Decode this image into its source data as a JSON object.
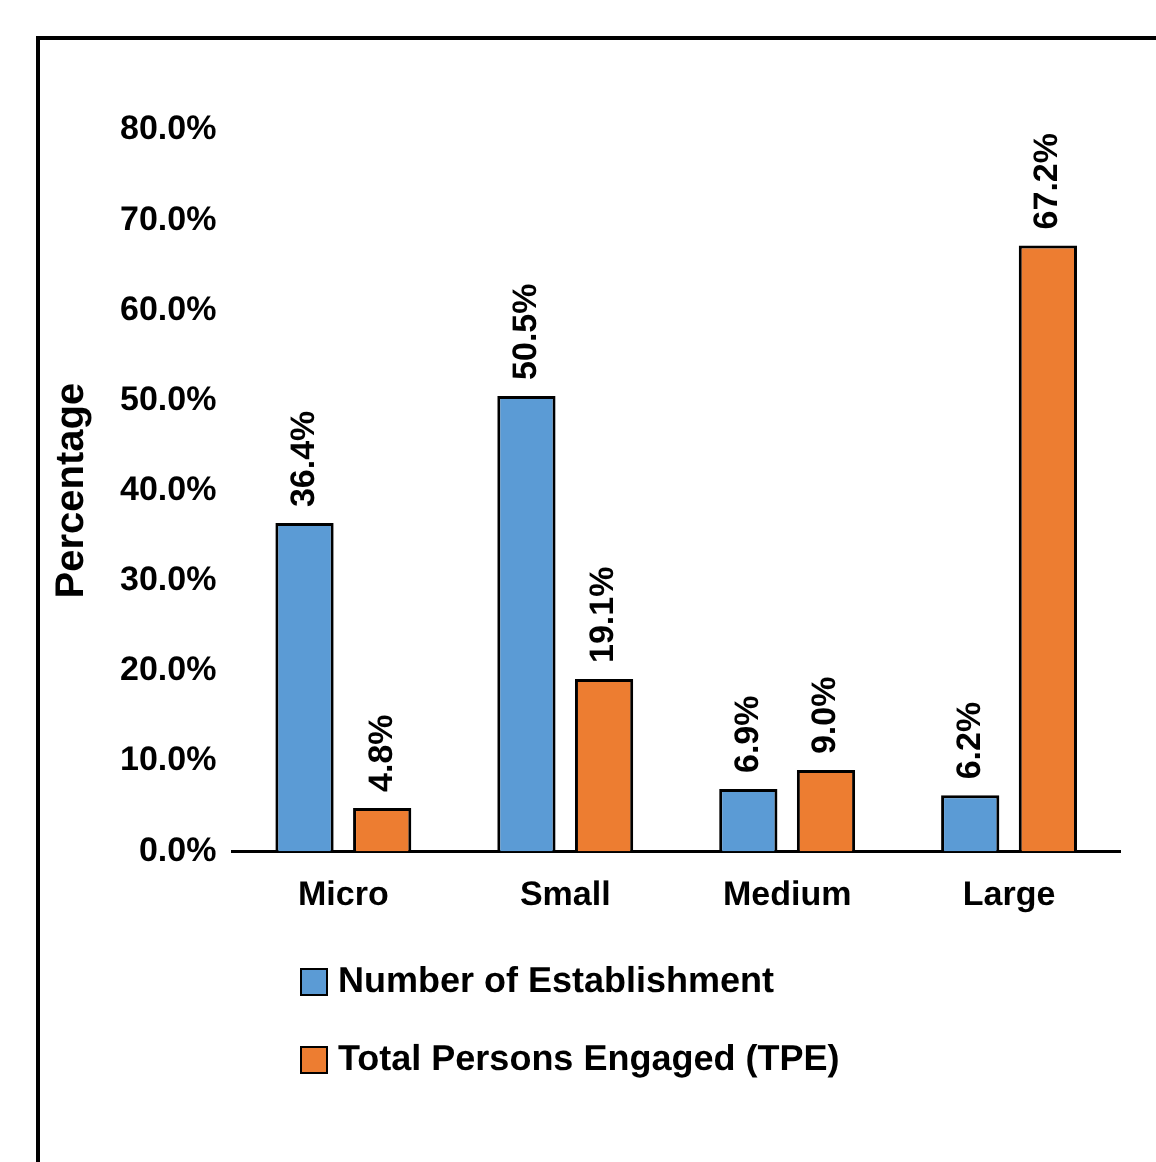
{
  "chart_data": {
    "type": "bar",
    "ylabel": "Percentage",
    "categories": [
      "Micro",
      "Small",
      "Medium",
      "Large"
    ],
    "series": [
      {
        "name": "Number of Establishment",
        "color": "#5b9bd5",
        "values": [
          36.4,
          50.5,
          6.9,
          6.2
        ],
        "value_labels": [
          "36.4%",
          "50.5%",
          "6.9%",
          "6.2%"
        ]
      },
      {
        "name": "Total Persons Engaged (TPE)",
        "color": "#ed7d31",
        "values": [
          4.8,
          19.1,
          9.0,
          67.2
        ],
        "value_labels": [
          "4.8%",
          "19.1%",
          "9.0%",
          "67.2%"
        ]
      }
    ],
    "ylim": [
      0,
      80
    ],
    "yticks": [
      {
        "value": 0,
        "label": "0.0%"
      },
      {
        "value": 10,
        "label": "10.0%"
      },
      {
        "value": 20,
        "label": "20.0%"
      },
      {
        "value": 30,
        "label": "30.0%"
      },
      {
        "value": 40,
        "label": "40.0%"
      },
      {
        "value": 50,
        "label": "50.0%"
      },
      {
        "value": 60,
        "label": "60.0%"
      },
      {
        "value": 70,
        "label": "70.0%"
      },
      {
        "value": 80,
        "label": "80.0%"
      }
    ],
    "grid": false,
    "legend": "bottom"
  }
}
